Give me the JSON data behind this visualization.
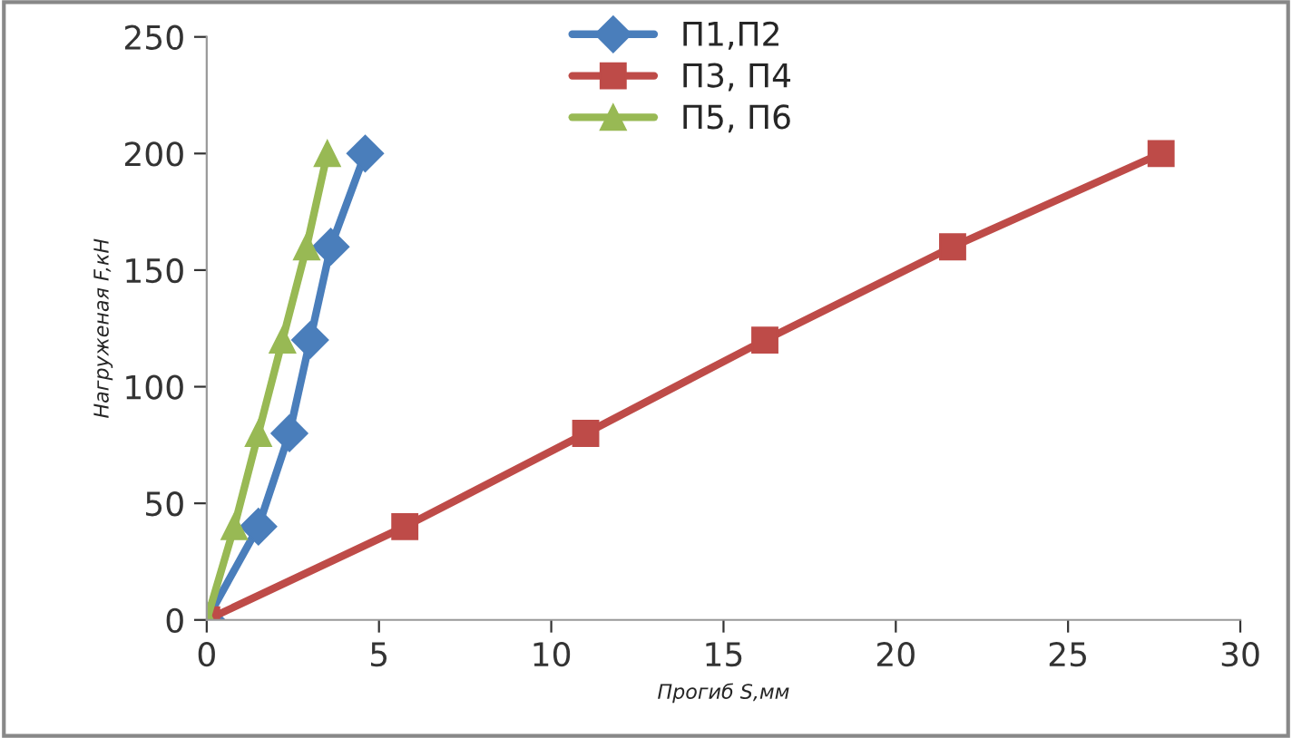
{
  "chart_data": {
    "type": "line",
    "xlabel": "Прогиб S,мм",
    "ylabel": "Нагруженая F,кН",
    "xlim": [
      0,
      30
    ],
    "xticks": [
      0,
      5,
      10,
      15,
      20,
      25,
      30
    ],
    "ylim": [
      0,
      250
    ],
    "yticks": [
      0,
      50,
      100,
      150,
      200,
      250
    ],
    "grid": false,
    "legend": "top",
    "line_style": "solid",
    "series": [
      {
        "name": "П1,П2",
        "color": "#4a7ebb",
        "marker": "diamond",
        "x": [
          0,
          1.5,
          2.4,
          3.0,
          3.6,
          4.6
        ],
        "values": [
          0,
          40,
          80,
          120,
          160,
          200
        ]
      },
      {
        "name": "П3, П4",
        "color": "#be4b48",
        "marker": "square",
        "x": [
          0,
          5.75,
          11.0,
          16.2,
          21.65,
          27.7
        ],
        "values": [
          0,
          40,
          80,
          120,
          160,
          200
        ]
      },
      {
        "name": "П5, П6",
        "color": "#98b954",
        "marker": "triangle",
        "x": [
          0,
          0.8,
          1.5,
          2.2,
          2.9,
          3.5
        ],
        "values": [
          0,
          40,
          80,
          120,
          160,
          200
        ]
      }
    ]
  }
}
